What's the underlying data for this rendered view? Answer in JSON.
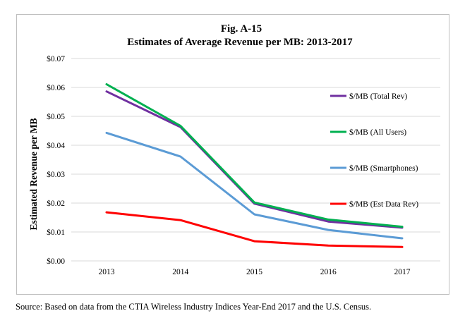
{
  "chart_data": {
    "type": "line",
    "title_line1": "Fig. A-15",
    "title_line2": "Estimates of  Average Revenue per MB: 2013-2017",
    "ylabel": "Estimated Revenue per MB",
    "xlabel": "",
    "categories": [
      "2013",
      "2014",
      "2015",
      "2016",
      "2017"
    ],
    "ylim": [
      0,
      0.07
    ],
    "y_ticks": [
      {
        "value": 0.0,
        "label": "$0.00"
      },
      {
        "value": 0.01,
        "label": "$0.01"
      },
      {
        "value": 0.02,
        "label": "$0.02"
      },
      {
        "value": 0.03,
        "label": "$0.03"
      },
      {
        "value": 0.04,
        "label": "$0.04"
      },
      {
        "value": 0.05,
        "label": "$0.05"
      },
      {
        "value": 0.06,
        "label": "$0.06"
      },
      {
        "value": 0.07,
        "label": "$0.07"
      }
    ],
    "grid": true,
    "legend_position": "right",
    "series": [
      {
        "name": "$/MB (Total Rev)",
        "color": "#7030a0",
        "values": [
          0.0586,
          0.0463,
          0.0198,
          0.0136,
          0.0115
        ]
      },
      {
        "name": "$/MB (All Users)",
        "color": "#00b050",
        "values": [
          0.0611,
          0.0467,
          0.0202,
          0.0143,
          0.0118
        ]
      },
      {
        "name": "$/MB (Smartphones)",
        "color": "#5b9bd5",
        "values": [
          0.0443,
          0.0361,
          0.0161,
          0.0107,
          0.0078
        ]
      },
      {
        "name": "$/MB (Est Data Rev)",
        "color": "#ff0000",
        "values": [
          0.0168,
          0.0141,
          0.0068,
          0.0053,
          0.0048
        ]
      }
    ]
  },
  "source_note": "Source: Based on data from the CTIA Wireless Industry Indices Year-End 2017 and the U.S. Census."
}
